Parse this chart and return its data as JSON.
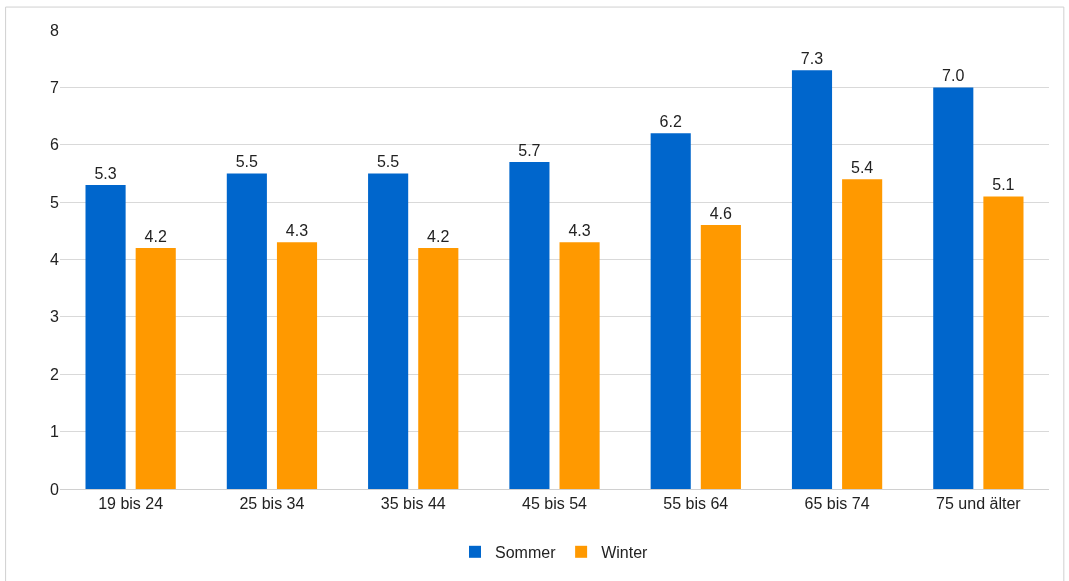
{
  "chart_data": {
    "type": "bar",
    "categories": [
      "19 bis 24",
      "25 bis 34",
      "35 bis 44",
      "45 bis 54",
      "55 bis 64",
      "65 bis 74",
      "75 und älter"
    ],
    "series": [
      {
        "name": "Sommer",
        "color": "#0066cc",
        "values": [
          5.3,
          5.5,
          5.5,
          5.7,
          6.2,
          7.3,
          7.0
        ],
        "value_labels": [
          "5.3",
          "5.5",
          "5.5",
          "5.7",
          "6.2",
          "7.3",
          "7.0"
        ]
      },
      {
        "name": "Winter",
        "color": "#ff9900",
        "values": [
          4.2,
          4.3,
          4.2,
          4.3,
          4.6,
          5.4,
          5.1
        ],
        "value_labels": [
          "4.2",
          "4.3",
          "4.2",
          "4.3",
          "4.6",
          "5.4",
          "5.1"
        ]
      }
    ],
    "ylim": [
      0,
      8
    ],
    "yticks": [
      0,
      1,
      2,
      3,
      4,
      5,
      6,
      7,
      8
    ],
    "grid": "y",
    "legend": "bottom"
  }
}
